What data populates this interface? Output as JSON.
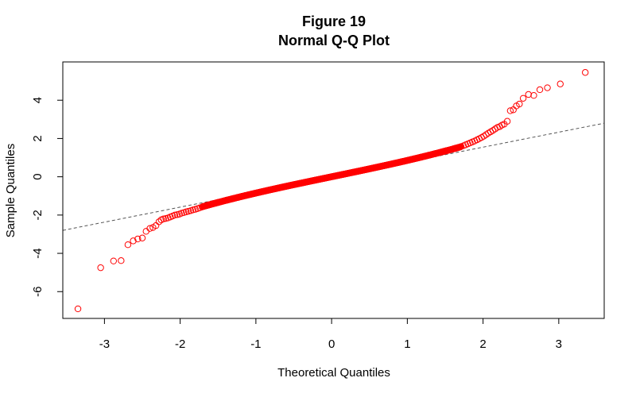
{
  "chart_data": {
    "type": "scatter",
    "title": "Figure 19",
    "subtitle": "Normal Q-Q Plot",
    "xlabel": "Theoretical Quantiles",
    "ylabel": "Sample Quantiles",
    "xlim": [
      -3.55,
      3.6
    ],
    "ylim": [
      -7.4,
      6.0
    ],
    "x_ticks": [
      -3,
      -2,
      -1,
      0,
      1,
      2,
      3
    ],
    "y_ticks": [
      -6,
      -4,
      -2,
      0,
      2,
      4
    ],
    "grid": false,
    "point_color": "#ff0000",
    "point_style": "open-circle",
    "reference_line": {
      "style": "dashed",
      "color": "#555555",
      "points": [
        [
          -3.55,
          -2.8
        ],
        [
          3.6,
          2.8
        ]
      ]
    },
    "points": {
      "n_central": 700,
      "central_x_range": [
        -1.7,
        1.7
      ],
      "central_slope": 0.82,
      "central_curvature": 0.1,
      "lower_tail": [
        [
          -3.35,
          -6.9
        ],
        [
          -3.05,
          -4.75
        ],
        [
          -2.88,
          -4.4
        ],
        [
          -2.78,
          -4.38
        ],
        [
          -2.69,
          -3.55
        ],
        [
          -2.62,
          -3.35
        ],
        [
          -2.56,
          -3.25
        ],
        [
          -2.5,
          -3.2
        ],
        [
          -2.45,
          -2.85
        ],
        [
          -2.4,
          -2.7
        ],
        [
          -2.36,
          -2.65
        ],
        [
          -2.32,
          -2.55
        ],
        [
          -2.28,
          -2.35
        ],
        [
          -2.25,
          -2.25
        ],
        [
          -2.22,
          -2.2
        ],
        [
          -2.19,
          -2.18
        ],
        [
          -2.16,
          -2.15
        ],
        [
          -2.13,
          -2.1
        ],
        [
          -2.1,
          -2.05
        ],
        [
          -2.07,
          -2.0
        ],
        [
          -2.04,
          -1.98
        ],
        [
          -2.01,
          -1.95
        ],
        [
          -1.98,
          -1.9
        ],
        [
          -1.95,
          -1.87
        ],
        [
          -1.92,
          -1.83
        ],
        [
          -1.89,
          -1.8
        ],
        [
          -1.86,
          -1.77
        ],
        [
          -1.83,
          -1.73
        ],
        [
          -1.8,
          -1.7
        ],
        [
          -1.77,
          -1.66
        ],
        [
          -1.74,
          -1.62
        ],
        [
          -1.71,
          -1.58
        ]
      ],
      "upper_tail": [
        [
          1.71,
          1.58
        ],
        [
          1.74,
          1.62
        ],
        [
          1.77,
          1.67
        ],
        [
          1.8,
          1.72
        ],
        [
          1.83,
          1.77
        ],
        [
          1.86,
          1.82
        ],
        [
          1.89,
          1.87
        ],
        [
          1.92,
          1.93
        ],
        [
          1.95,
          1.99
        ],
        [
          1.98,
          2.05
        ],
        [
          2.01,
          2.12
        ],
        [
          2.04,
          2.2
        ],
        [
          2.07,
          2.28
        ],
        [
          2.1,
          2.35
        ],
        [
          2.13,
          2.42
        ],
        [
          2.16,
          2.5
        ],
        [
          2.19,
          2.58
        ],
        [
          2.22,
          2.62
        ],
        [
          2.25,
          2.7
        ],
        [
          2.28,
          2.75
        ],
        [
          2.32,
          2.9
        ],
        [
          2.36,
          3.45
        ],
        [
          2.4,
          3.5
        ],
        [
          2.44,
          3.7
        ],
        [
          2.48,
          3.8
        ],
        [
          2.53,
          4.1
        ],
        [
          2.6,
          4.3
        ],
        [
          2.67,
          4.25
        ],
        [
          2.75,
          4.55
        ],
        [
          2.85,
          4.65
        ],
        [
          3.02,
          4.85
        ],
        [
          3.35,
          5.45
        ]
      ]
    }
  }
}
